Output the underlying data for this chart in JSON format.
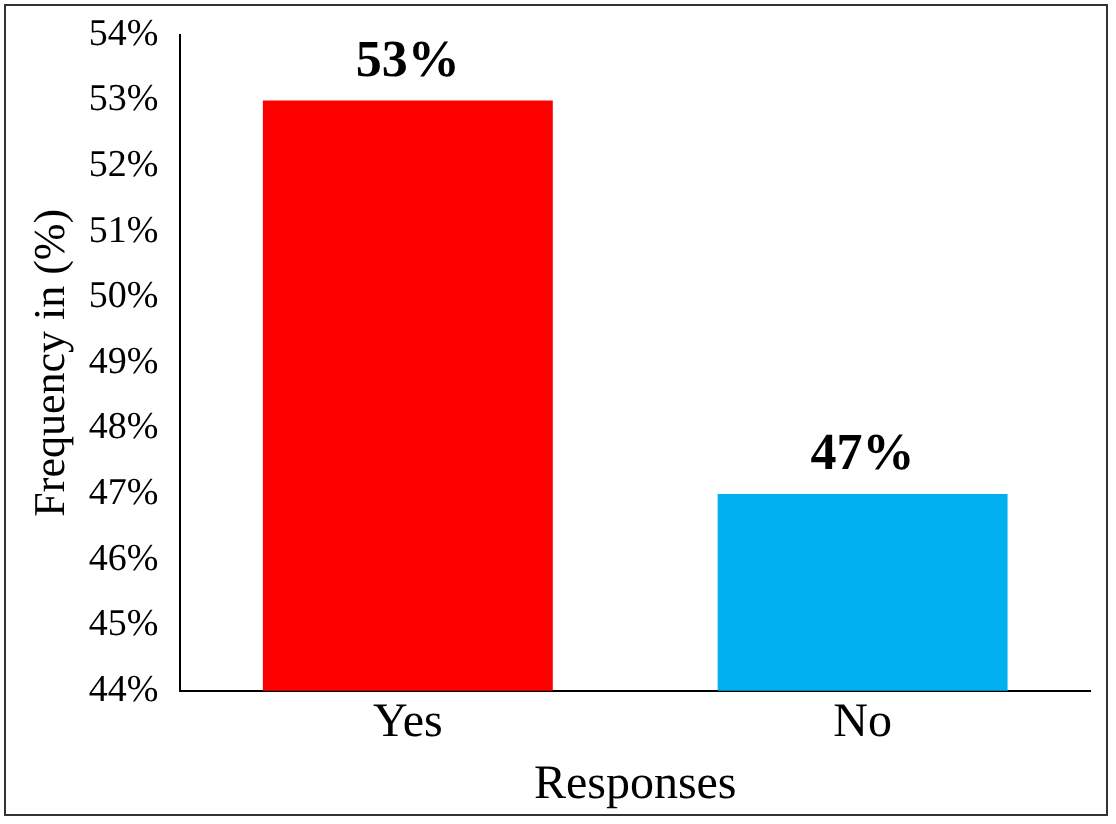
{
  "chart_data": {
    "type": "bar",
    "xlabel": "Responses",
    "ylabel": "Frequency in (%)",
    "categories": [
      "Yes",
      "No"
    ],
    "values": [
      53,
      47
    ],
    "colors": [
      "#ff0000",
      "#00b0f0"
    ],
    "value_labels": [
      "53%",
      "47%"
    ],
    "ylim": [
      44,
      54
    ],
    "yticks": [
      {
        "value": 44,
        "label": "44%"
      },
      {
        "value": 45,
        "label": "45%"
      },
      {
        "value": 46,
        "label": "46%"
      },
      {
        "value": 47,
        "label": "47%"
      },
      {
        "value": 48,
        "label": "48%"
      },
      {
        "value": 49,
        "label": "49%"
      },
      {
        "value": 50,
        "label": "50%"
      },
      {
        "value": 51,
        "label": "51%"
      },
      {
        "value": 52,
        "label": "52%"
      },
      {
        "value": 53,
        "label": "53%"
      },
      {
        "value": 54,
        "label": "54%"
      }
    ],
    "grid": false,
    "legend": false
  }
}
